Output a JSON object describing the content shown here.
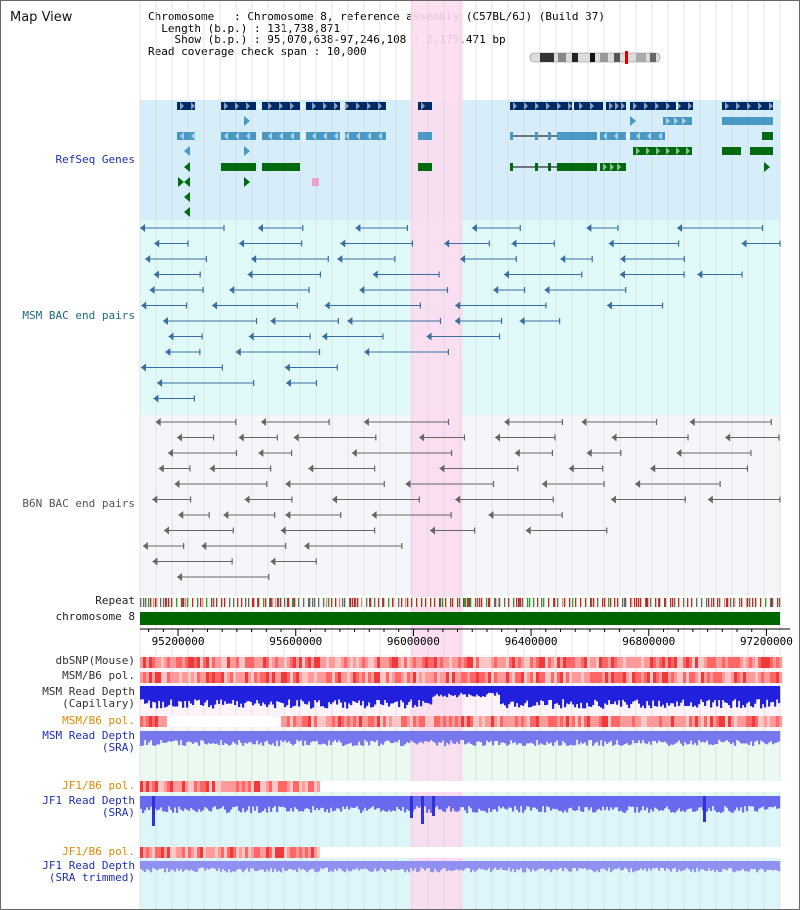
{
  "header": {
    "title": "Map View"
  },
  "info": [
    {
      "key": "Chromosome",
      "pad": "  ",
      "value": "Chromosome 8, reference assembly (C57BL/6J) (Build 37)"
    },
    {
      "key": "Length (b.p.)",
      "pad": "",
      "value": "131,738,871"
    },
    {
      "key": "Show (b.p.)",
      "pad": "  ",
      "value": "95,070,638-97,246,108 : 2,175,471 bp"
    },
    {
      "key": "Read coverage check span",
      "pad": "",
      "value": "10,000"
    }
  ],
  "axis": {
    "start": 95070638,
    "end": 97246108,
    "ticks": [
      95200000,
      95600000,
      96000000,
      96400000,
      96800000,
      97200000
    ],
    "tick_labels": [
      "95200000",
      "95600000",
      "96000000",
      "96400000",
      "96800000",
      "97200000"
    ]
  },
  "highlight": {
    "start": 95990000,
    "end": 96168000,
    "color": "#fcdcf0"
  },
  "colors": {
    "refseq_bg": "#d6eefa",
    "msm_bg": "#e0fafa",
    "b6n_bg": "#f4f6fa",
    "lower_bg_a": "#eafaf0",
    "lower_bg_b": "#dcf6fa",
    "gene_dark": "#002a66",
    "gene_mid": "#4a98c4",
    "gene_green": "#006a10",
    "msm_pair": "#3a6ea0",
    "b6n_pair": "#666666",
    "chrom_bar": "#006600",
    "depth_blue": "#2020dd",
    "depth_light": "#7878ee",
    "pol_red": "#ee4444"
  },
  "tracks": [
    {
      "id": "refseq",
      "label": "RefSeq Genes",
      "color": "#2030b0"
    },
    {
      "id": "msm_bac",
      "label": "MSM BAC end pairs",
      "color": "#1e6a80"
    },
    {
      "id": "b6n_bac",
      "label": "B6N BAC end pairs",
      "color": "#555555"
    },
    {
      "id": "repeat",
      "label": "Repeat",
      "color": "#222222"
    },
    {
      "id": "chromosome",
      "label": "chromosome 8",
      "color": "#222222"
    },
    {
      "id": "dbsnp",
      "label": "dbSNP(Mouse)",
      "color": "#333333"
    },
    {
      "id": "msm_b6_pol",
      "label": "MSM/B6 pol.",
      "color": "#333333"
    },
    {
      "id": "msm_depth_cap",
      "label": "MSM Read Depth\n(Capillary)",
      "color": "#333333"
    },
    {
      "id": "msm_b6_pol2",
      "label": "MSM/B6 pol.",
      "color": "#e08a00"
    },
    {
      "id": "msm_depth_sra",
      "label": "MSM Read Depth\n(SRA)",
      "color": "#2030b0"
    },
    {
      "id": "jf1_b6_pol",
      "label": "JF1/B6 pol.",
      "color": "#e08a00"
    },
    {
      "id": "jf1_depth_sra",
      "label": "JF1 Read Depth\n(SRA)",
      "color": "#2030b0"
    },
    {
      "id": "jf1_b6_pol2",
      "label": "JF1/B6 pol.",
      "color": "#e08a00"
    },
    {
      "id": "jf1_depth_trim",
      "label": "JF1 Read Depth\n(SRA trimmed)",
      "color": "#2030b0"
    }
  ]
}
